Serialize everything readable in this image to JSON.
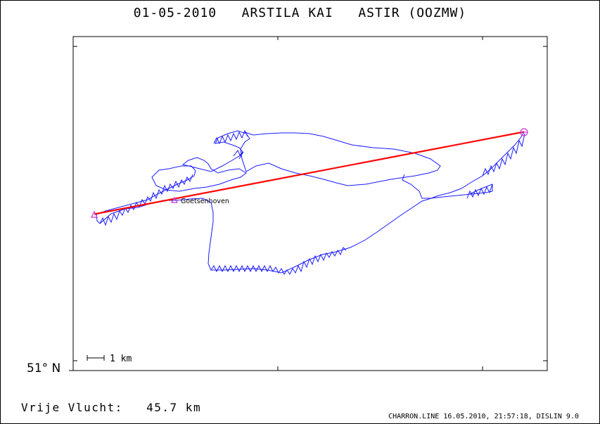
{
  "header": {
    "title": "01-05-2010   ARSTILA KAI   ASTIR (OOZMW)"
  },
  "map": {
    "place_label": "Goetsenhoven",
    "scale_label": "1 km",
    "latitude_label": "51° N",
    "colors": {
      "track": "#1a1aff",
      "straight_line": "#ff0000",
      "markers": "#cc33cc",
      "axes": "#000000"
    }
  },
  "footer": {
    "distance_label": "Vrije Vlucht:",
    "distance_value": "45.7 km",
    "credit": "CHARRON.LINE 16.05.2010, 21:57:18, DISLIN 9.0"
  }
}
